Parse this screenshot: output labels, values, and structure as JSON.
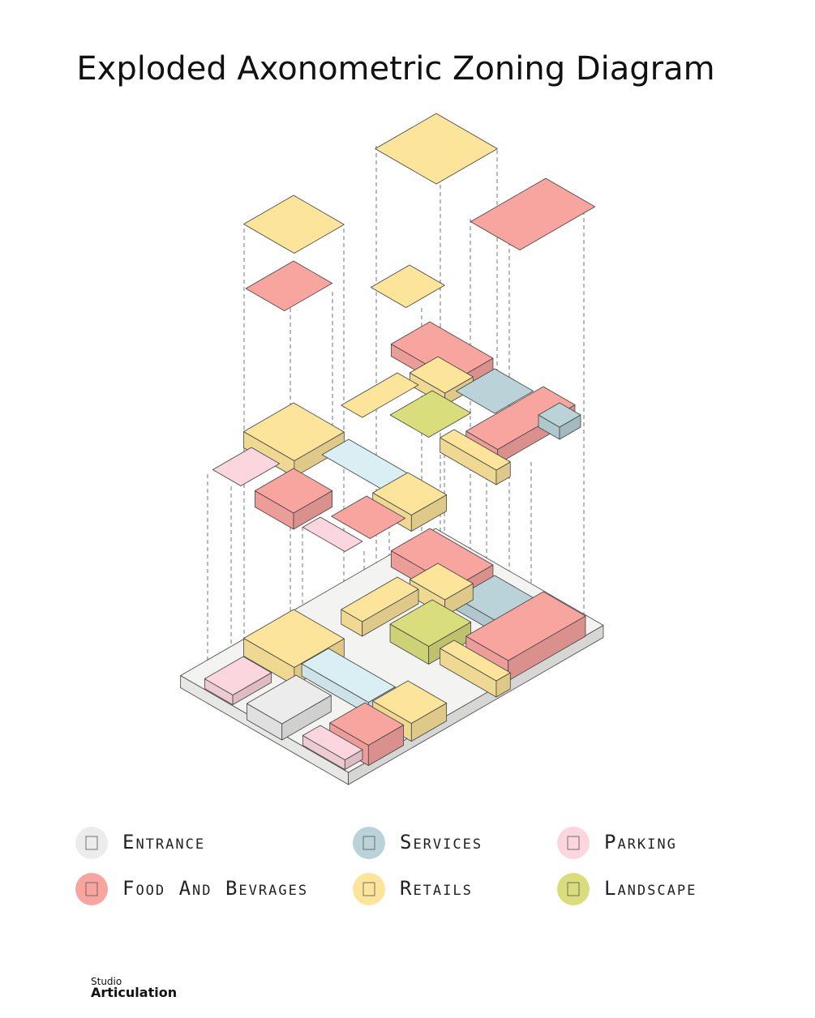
{
  "header": {
    "title": "Exploded Axonometric Zoning Diagram"
  },
  "legend": [
    {
      "label": "Entrance"
    },
    {
      "label": "Services"
    },
    {
      "label": "Parking"
    },
    {
      "label": "Food And Bevrages"
    },
    {
      "label": "Retails"
    },
    {
      "label": "Landscape"
    }
  ],
  "footer": {
    "studio": "Studio",
    "brand": "Articulation"
  }
}
